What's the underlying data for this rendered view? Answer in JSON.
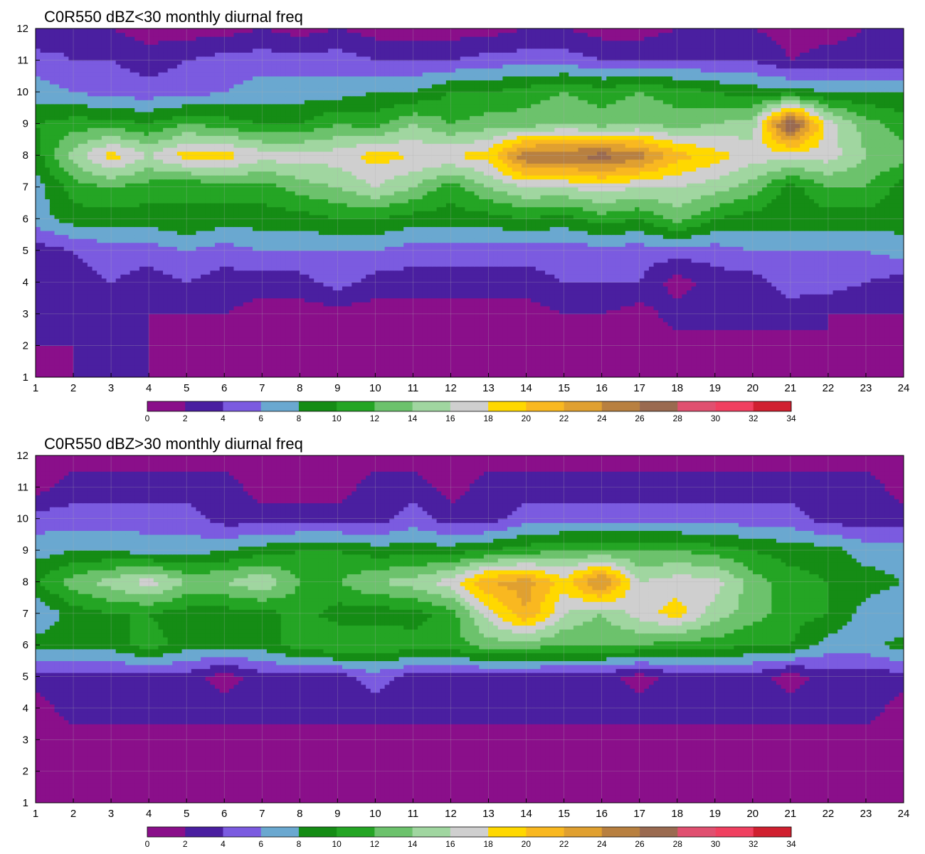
{
  "chart_data": [
    {
      "type": "heatmap",
      "title": "C0R550 dBZ<30 monthly diurnal freq",
      "x": [
        1,
        2,
        3,
        4,
        5,
        6,
        7,
        8,
        9,
        10,
        11,
        12,
        13,
        14,
        15,
        16,
        17,
        18,
        19,
        20,
        21,
        22,
        23,
        24
      ],
      "y": [
        1,
        2,
        3,
        4,
        5,
        6,
        7,
        8,
        9,
        10,
        11,
        12
      ],
      "xlim": [
        1,
        24
      ],
      "ylim": [
        1,
        12
      ],
      "grid": true,
      "z": [
        [
          1,
          2,
          2,
          2,
          2,
          2,
          1,
          1,
          1,
          1,
          1,
          1,
          1,
          1,
          1,
          1,
          1,
          1,
          1,
          1,
          1,
          1,
          1,
          1
        ],
        [
          2,
          2,
          2,
          2,
          1,
          1,
          1,
          1,
          1,
          1,
          1,
          2,
          1,
          1,
          1,
          1,
          1,
          1,
          1,
          1,
          1,
          2,
          1,
          1
        ],
        [
          3,
          2,
          2,
          2,
          2,
          2,
          1,
          1,
          1,
          1,
          1,
          1,
          1,
          1,
          2,
          2,
          1,
          3,
          3,
          3,
          3,
          2,
          2,
          2
        ],
        [
          3,
          3,
          4,
          3,
          4,
          3,
          3,
          3,
          5,
          3,
          3,
          3,
          3,
          3,
          4,
          4,
          4,
          1,
          3,
          3,
          5,
          5,
          4,
          3
        ],
        [
          3,
          4,
          5,
          5,
          6,
          5,
          6,
          6,
          6,
          6,
          5,
          5,
          5,
          5,
          5,
          5,
          5,
          5,
          5,
          6,
          6,
          6,
          6,
          7
        ],
        [
          7,
          9,
          9,
          9,
          10,
          9,
          9,
          9,
          10,
          10,
          9,
          9,
          9,
          10,
          9,
          11,
          10,
          13,
          10,
          9,
          9,
          9,
          9,
          9
        ],
        [
          7,
          11,
          12,
          11,
          10,
          11,
          11,
          13,
          14,
          16,
          14,
          11,
          14,
          16,
          16,
          17,
          16,
          16,
          15,
          13,
          9,
          12,
          12,
          9
        ],
        [
          9,
          15,
          19,
          16,
          19,
          19,
          17,
          17,
          17,
          19,
          18,
          18,
          19,
          26,
          26,
          27,
          25,
          21,
          19,
          17,
          17,
          17,
          14,
          13
        ],
        [
          10,
          11,
          11,
          10,
          12,
          11,
          10,
          10,
          12,
          11,
          14,
          12,
          13,
          13,
          14,
          13,
          14,
          13,
          14,
          15,
          29,
          17,
          13,
          11
        ],
        [
          7,
          6,
          5,
          5,
          5,
          6,
          7,
          7,
          7,
          8,
          8,
          10,
          10,
          11,
          12,
          11,
          12,
          11,
          10,
          9,
          9,
          8,
          8,
          8
        ],
        [
          5,
          4,
          4,
          3,
          4,
          5,
          5,
          5,
          5,
          4,
          4,
          4,
          5,
          5,
          5,
          4,
          4,
          4,
          4,
          4,
          2,
          3,
          3,
          3
        ],
        [
          2,
          3,
          2,
          1,
          1,
          1,
          2,
          1,
          2,
          1,
          1,
          1,
          1,
          2,
          2,
          1,
          1,
          2,
          2,
          2,
          1,
          1,
          2,
          2
        ]
      ]
    },
    {
      "type": "heatmap",
      "title": "C0R550 dBZ>30 monthly diurnal freq",
      "x": [
        1,
        2,
        3,
        4,
        5,
        6,
        7,
        8,
        9,
        10,
        11,
        12,
        13,
        14,
        15,
        16,
        17,
        18,
        19,
        20,
        21,
        22,
        23,
        24
      ],
      "y": [
        1,
        2,
        3,
        4,
        5,
        6,
        7,
        8,
        9,
        10,
        11,
        12
      ],
      "xlim": [
        1,
        24
      ],
      "ylim": [
        1,
        12
      ],
      "grid": true,
      "z": [
        [
          1,
          1,
          1,
          1,
          1,
          1,
          1,
          1,
          1,
          1,
          1,
          1,
          1,
          1,
          1,
          1,
          1,
          1,
          1,
          1,
          1,
          1,
          1,
          1
        ],
        [
          1,
          1,
          1,
          1,
          1,
          1,
          1,
          1,
          1,
          1,
          1,
          1,
          1,
          1,
          1,
          1,
          1,
          1,
          1,
          1,
          1,
          1,
          1,
          1
        ],
        [
          1,
          1,
          1,
          1,
          1,
          1,
          1,
          1,
          1,
          1,
          1,
          1,
          1,
          1,
          1,
          1,
          1,
          1,
          1,
          1,
          1,
          1,
          1,
          1
        ],
        [
          1,
          3,
          3,
          3,
          3,
          3,
          3,
          3,
          3,
          3,
          3,
          3,
          3,
          3,
          3,
          3,
          3,
          3,
          3,
          3,
          3,
          3,
          3,
          1
        ],
        [
          3,
          3,
          3,
          3,
          3,
          1,
          3,
          3,
          3,
          5,
          3,
          3,
          3,
          3,
          3,
          3,
          1,
          3,
          3,
          3,
          1,
          3,
          3,
          3
        ],
        [
          9,
          9,
          9,
          11,
          9,
          9,
          9,
          11,
          12,
          12,
          11,
          11,
          13,
          13,
          12,
          12,
          12,
          11,
          11,
          10,
          10,
          7,
          7,
          9
        ],
        [
          6,
          9,
          10,
          10,
          9,
          9,
          9,
          11,
          9,
          9,
          9,
          11,
          17,
          22,
          16,
          14,
          17,
          19,
          15,
          13,
          11,
          10,
          7,
          6
        ],
        [
          10,
          13,
          15,
          17,
          14,
          14,
          16,
          12,
          12,
          14,
          15,
          17,
          22,
          23,
          19,
          25,
          16,
          17,
          17,
          13,
          11,
          10,
          9,
          8
        ],
        [
          7,
          8,
          8,
          7,
          7,
          8,
          9,
          10,
          10,
          9,
          9,
          9,
          10,
          11,
          12,
          12,
          12,
          12,
          11,
          10,
          9,
          9,
          7,
          7
        ],
        [
          5,
          5,
          5,
          5,
          5,
          3,
          3,
          3,
          3,
          3,
          5,
          3,
          3,
          5,
          5,
          5,
          5,
          5,
          5,
          5,
          5,
          3,
          3,
          3
        ],
        [
          1,
          3,
          3,
          3,
          3,
          3,
          1,
          1,
          1,
          3,
          3,
          1,
          3,
          3,
          3,
          3,
          3,
          3,
          3,
          3,
          3,
          3,
          3,
          1
        ],
        [
          1,
          1,
          1,
          1,
          1,
          1,
          1,
          1,
          1,
          1,
          1,
          1,
          1,
          1,
          1,
          1,
          1,
          1,
          1,
          1,
          1,
          1,
          1,
          1
        ]
      ]
    }
  ],
  "colorbar": {
    "levels": [
      0,
      2,
      4,
      6,
      8,
      10,
      12,
      14,
      16,
      18,
      20,
      22,
      24,
      26,
      28,
      30,
      32,
      34
    ],
    "colors": [
      "#8a0f8a",
      "#4a1fa0",
      "#7b5be0",
      "#6aa8d0",
      "#158c15",
      "#24a524",
      "#6cc26c",
      "#a0d6a0",
      "#cfcfcf",
      "#ffd800",
      "#f9b820",
      "#e0a030",
      "#b88040",
      "#9a6a50",
      "#e05070",
      "#f04060",
      "#d02030"
    ],
    "ticks": [
      "0",
      "2",
      "4",
      "6",
      "8",
      "10",
      "12",
      "14",
      "16",
      "18",
      "20",
      "22",
      "24",
      "26",
      "28",
      "30",
      "32",
      "34"
    ]
  },
  "contour_line_color": "#f0a020",
  "grid_color": "#b0b0b0"
}
